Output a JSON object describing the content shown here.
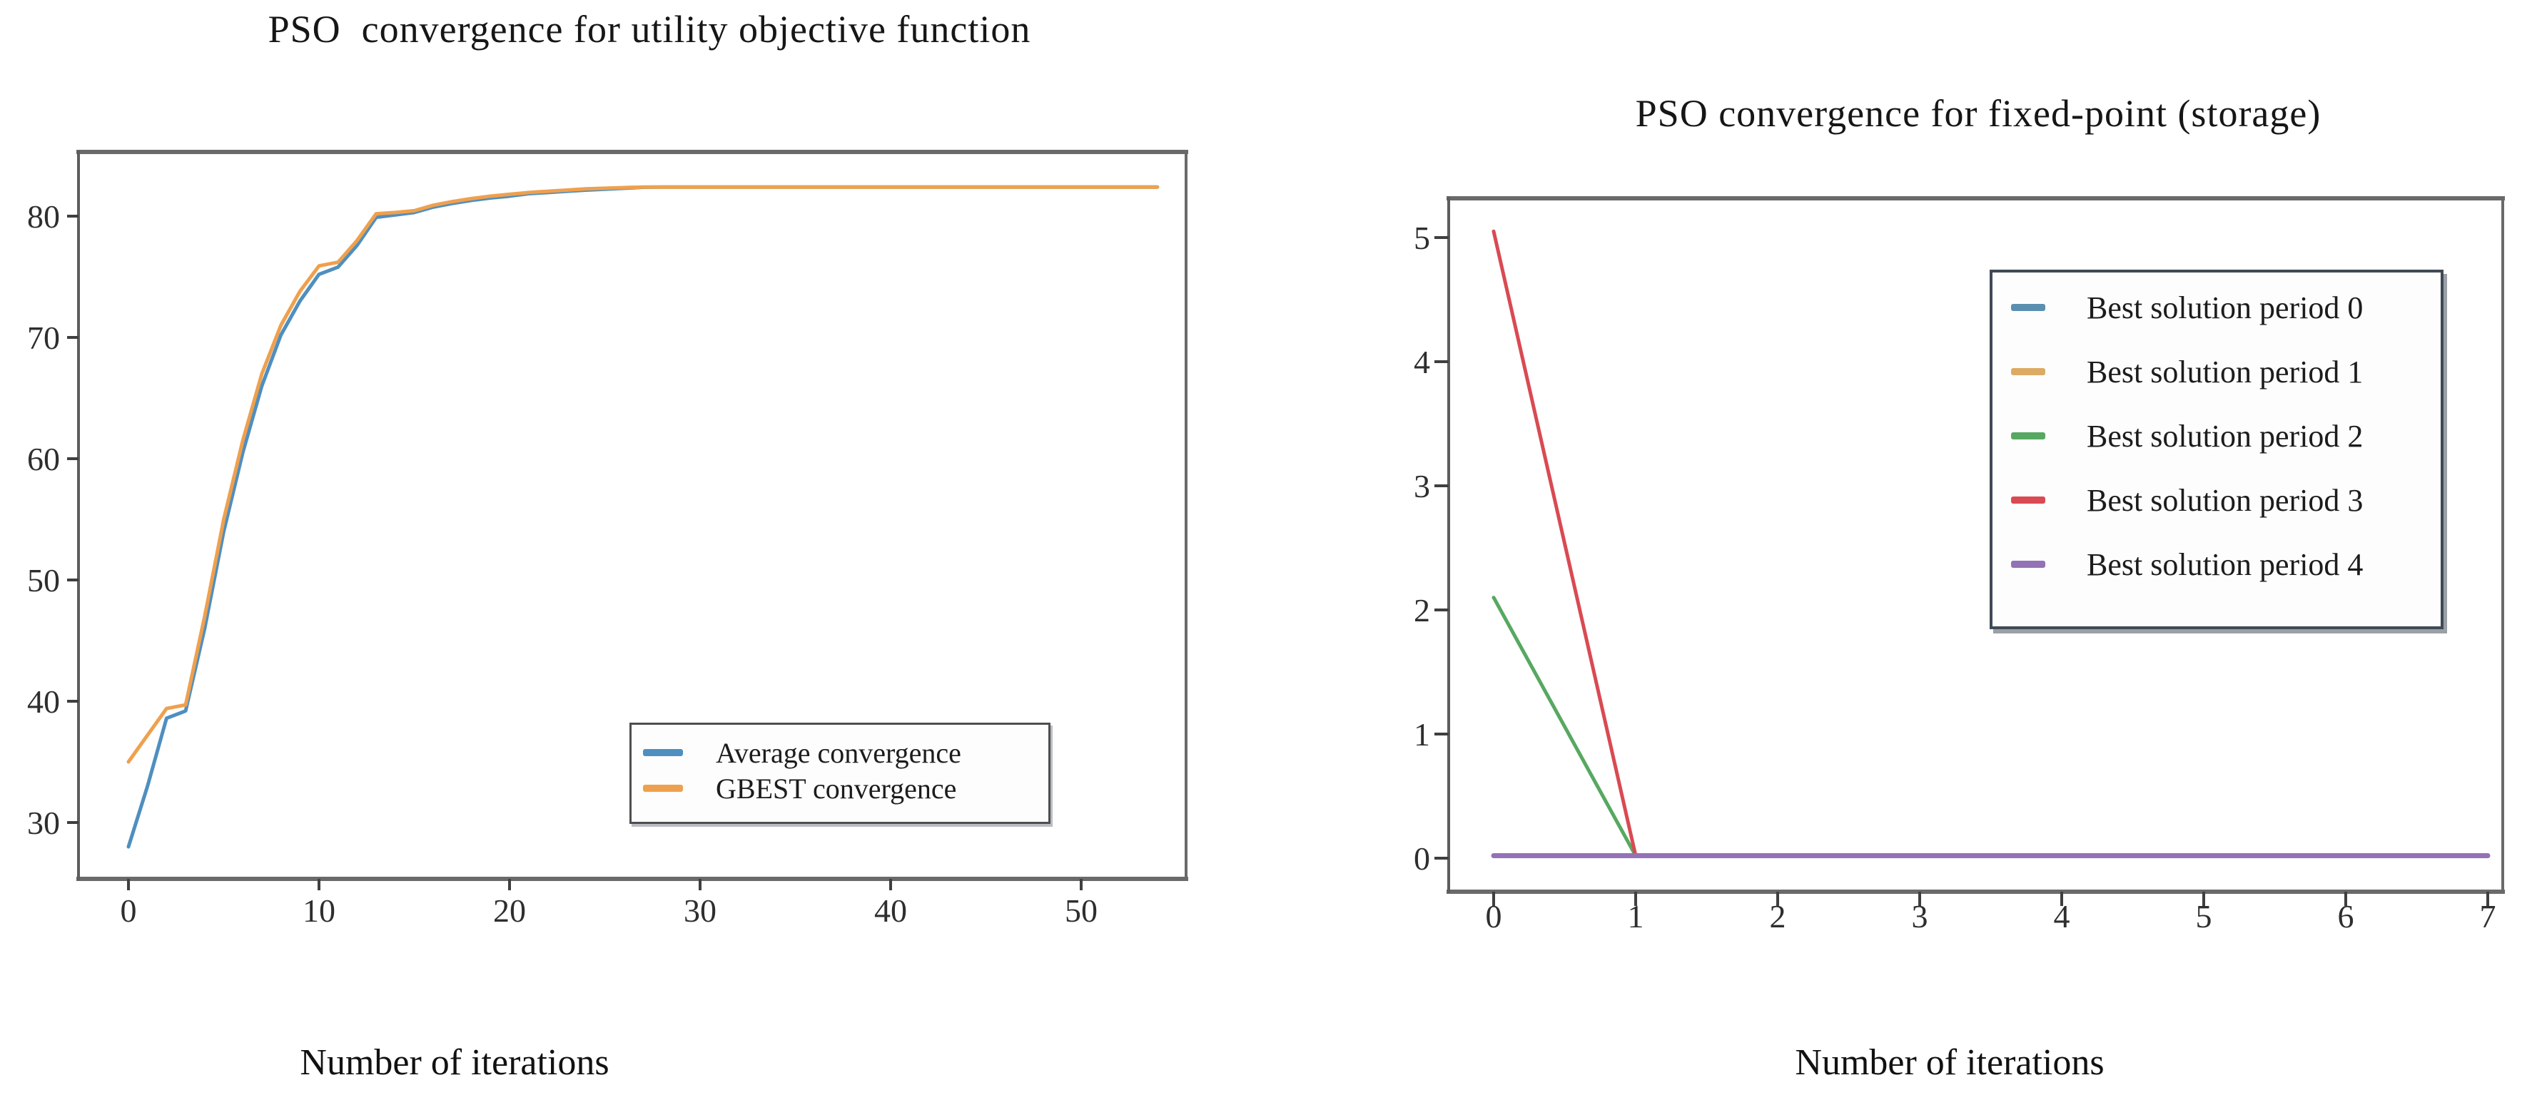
{
  "page": {
    "background": "#ffffff",
    "frame_color": "#6a6a6a",
    "tick_color": "#3f3f3f"
  },
  "chart_data": [
    {
      "type": "line",
      "title": "PSO  convergence for utility objective function",
      "xlabel": "Number of iterations",
      "ylabel": "",
      "xticks": [
        0,
        10,
        20,
        30,
        40,
        50
      ],
      "yticks": [
        30,
        40,
        50,
        60,
        70,
        80
      ],
      "xlim": [
        -2.6,
        55.5
      ],
      "ylim": [
        25.3,
        85.3
      ],
      "grid": false,
      "legend_position": "lower right",
      "x": [
        0,
        1,
        2,
        3,
        4,
        5,
        6,
        7,
        8,
        9,
        10,
        11,
        12,
        13,
        14,
        15,
        16,
        17,
        18,
        19,
        20,
        21,
        22,
        23,
        24,
        25,
        26,
        27,
        28,
        29,
        30,
        31,
        32,
        33,
        34,
        35,
        36,
        37,
        38,
        39,
        40,
        41,
        42,
        43,
        44,
        45,
        46,
        47,
        48,
        49,
        50,
        51,
        52,
        53,
        54
      ],
      "series": [
        {
          "name": "Average convergence",
          "color": "#4e8fbf",
          "values": [
            28,
            33,
            38.6,
            39.2,
            46,
            54,
            60.5,
            66,
            70.2,
            73,
            75.2,
            75.8,
            77.6,
            79.9,
            80.1,
            80.3,
            80.75,
            81.05,
            81.3,
            81.5,
            81.65,
            81.85,
            81.95,
            82.05,
            82.15,
            82.22,
            82.3,
            82.38,
            82.4,
            82.4,
            82.4,
            82.4,
            82.4,
            82.4,
            82.4,
            82.4,
            82.4,
            82.4,
            82.4,
            82.4,
            82.4,
            82.4,
            82.4,
            82.4,
            82.4,
            82.4,
            82.4,
            82.4,
            82.4,
            82.4,
            82.4,
            82.4,
            82.4,
            82.4,
            82.4
          ]
        },
        {
          "name": "GBEST convergence",
          "color": "#efa04e",
          "values": [
            35,
            37.2,
            39.4,
            39.7,
            47,
            55,
            61.5,
            67,
            71,
            73.8,
            75.9,
            76.2,
            78,
            80.2,
            80.3,
            80.45,
            80.9,
            81.2,
            81.45,
            81.65,
            81.8,
            81.95,
            82.05,
            82.15,
            82.25,
            82.3,
            82.35,
            82.4,
            82.4,
            82.4,
            82.4,
            82.4,
            82.4,
            82.4,
            82.4,
            82.4,
            82.4,
            82.4,
            82.4,
            82.4,
            82.4,
            82.4,
            82.4,
            82.4,
            82.4,
            82.4,
            82.4,
            82.4,
            82.4,
            82.4,
            82.4,
            82.4,
            82.4,
            82.4,
            82.4
          ]
        }
      ]
    },
    {
      "type": "line",
      "title": "PSO convergence for fixed-point (storage)",
      "xlabel": "Number of iterations",
      "ylabel": "",
      "xticks": [
        0,
        1,
        2,
        3,
        4,
        5,
        6,
        7
      ],
      "yticks": [
        0,
        1,
        2,
        3,
        4,
        5
      ],
      "xlim": [
        -0.32,
        7.1
      ],
      "ylim": [
        -0.27,
        5.57
      ],
      "grid": false,
      "legend_position": "upper right",
      "x": [
        0,
        1,
        2,
        3,
        4,
        5,
        6,
        7
      ],
      "series": [
        {
          "name": "Best solution period 0",
          "color": "#5a8fb0",
          "values": [
            0.02,
            0.02,
            0.02,
            0.02,
            0.02,
            0.02,
            0.02,
            0.02
          ]
        },
        {
          "name": "Best solution period 1",
          "color": "#ddaa63",
          "values": [
            0.02,
            0.02,
            0.02,
            0.02,
            0.02,
            0.02,
            0.02,
            0.02
          ]
        },
        {
          "name": "Best solution period 2",
          "color": "#57a861",
          "values": [
            2.1,
            0.02,
            0.02,
            0.02,
            0.02,
            0.02,
            0.02,
            0.02
          ]
        },
        {
          "name": "Best solution period 3",
          "color": "#d94a52",
          "values": [
            5.05,
            0.02,
            0.02,
            0.02,
            0.02,
            0.02,
            0.02,
            0.02
          ]
        },
        {
          "name": "Best solution period 4",
          "color": "#9372b5",
          "values": [
            0.02,
            0.02,
            0.02,
            0.02,
            0.02,
            0.02,
            0.02,
            0.02
          ]
        }
      ]
    }
  ]
}
